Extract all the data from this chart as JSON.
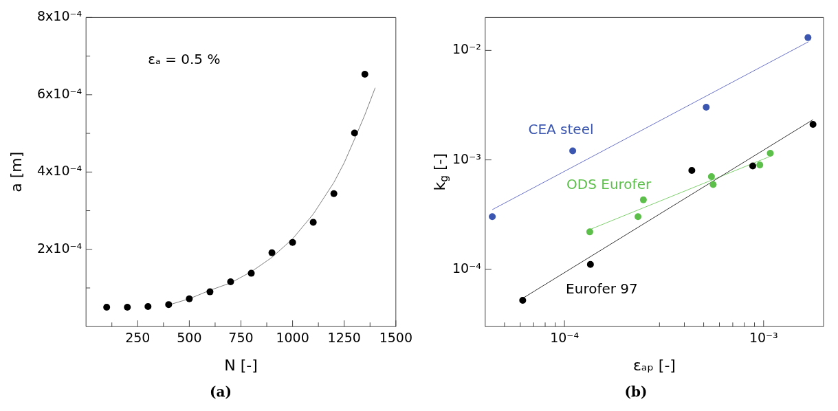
{
  "chart_data": [
    {
      "type": "scatter",
      "title": "(a)",
      "xlabel": "N [-]",
      "ylabel": "a [m]",
      "annotations": [
        "εₐ = 0.5 %"
      ],
      "grid": false,
      "legend": false,
      "xlim": [
        0,
        1500
      ],
      "xticks": [
        {
          "value": 125,
          "label": null
        },
        250,
        {
          "value": 375,
          "label": null
        },
        500,
        {
          "value": 625,
          "label": null
        },
        750,
        {
          "value": 875,
          "label": null
        },
        1000,
        {
          "value": 1125,
          "label": null
        },
        1250,
        {
          "value": 1375,
          "label": null
        },
        1500
      ],
      "ylim": [
        0,
        0.0008
      ],
      "yticks": [
        {
          "value": 0.0001,
          "label": null
        },
        {
          "value": 0.0002,
          "label": "2x10⁻⁴"
        },
        {
          "value": 0.0003,
          "label": null
        },
        {
          "value": 0.0004,
          "label": "4x10⁻⁴"
        },
        {
          "value": 0.0005,
          "label": null
        },
        {
          "value": 0.0006,
          "label": "6x10⁻⁴"
        },
        {
          "value": 0.0007,
          "label": null
        },
        {
          "value": 0.0008,
          "label": "8x10⁻⁴"
        }
      ],
      "series": [
        {
          "type": "scatter",
          "color": "#000000",
          "marker": "circle",
          "x": [
            100,
            200,
            300,
            400,
            500,
            600,
            700,
            800,
            900,
            1000,
            1100,
            1200,
            1300,
            1350
          ],
          "values": [
            5e-05,
            5e-05,
            5.2e-05,
            5.7e-05,
            7.2e-05,
            9e-05,
            0.000116,
            0.000138,
            0.000191,
            0.000218,
            0.00027,
            0.000344,
            0.000501,
            0.000653
          ]
        },
        {
          "type": "line",
          "color": "#7f7f7f",
          "marker": "none",
          "x": [
            400,
            500,
            600,
            700,
            800,
            900,
            1000,
            1100,
            1200,
            1250,
            1300,
            1350,
            1400
          ],
          "values": [
            5.6e-05,
            7.2e-05,
            9.4e-05,
            0.000113,
            0.000142,
            0.000179,
            0.000227,
            0.000291,
            0.000373,
            0.000424,
            0.000485,
            0.000548,
            0.000618
          ]
        }
      ]
    },
    {
      "type": "scatter",
      "title": "(b)",
      "xlabel": "εₐₚ [-]",
      "ylabel": "k$_{g}$ [-]",
      "grid": false,
      "legend": false,
      "log": "xy",
      "xlim": [
        4e-05,
        0.002
      ],
      "xticks": [
        {
          "value": 5e-05,
          "label": null
        },
        {
          "value": 6e-05,
          "label": null
        },
        {
          "value": 7e-05,
          "label": null
        },
        {
          "value": 8e-05,
          "label": null
        },
        {
          "value": 9e-05,
          "label": null
        },
        {
          "value": 0.0001,
          "label": "10⁻⁴"
        },
        {
          "value": 0.0003,
          "label": null
        },
        {
          "value": 0.0004,
          "label": null
        },
        {
          "value": 0.0005,
          "label": null
        },
        {
          "value": 0.0006,
          "label": null
        },
        {
          "value": 0.0007,
          "label": null
        },
        {
          "value": 0.0008,
          "label": null
        },
        {
          "value": 0.0009,
          "label": null
        },
        {
          "value": 0.001,
          "label": "10⁻³"
        }
      ],
      "ylim": [
        3e-05,
        0.02
      ],
      "yticks": [
        {
          "value": 0.0001,
          "label": "10⁻⁴"
        },
        {
          "value": 0.001,
          "label": "10⁻³"
        },
        {
          "value": 0.01,
          "label": "10⁻²"
        }
      ],
      "series": [
        {
          "type": "scatter",
          "name": "CEA steel",
          "color": "#3a56b0",
          "marker": "circle",
          "x": [
            4.34e-05,
            0.00011,
            0.000515,
            0.00167
          ],
          "values": [
            0.000303,
            0.00121,
            0.00303,
            0.0131
          ]
        },
        {
          "type": "line",
          "color": "#6a72c8",
          "marker": "none",
          "x": [
            4.34e-05,
            0.00168
          ],
          "values": [
            0.000351,
            0.012
          ]
        },
        {
          "type": "scatter",
          "name": "Eurofer 97",
          "color": "#000000",
          "marker": "circle",
          "x": [
            6.17e-05,
            0.000135,
            0.000436,
            0.000882,
            0.00177
          ],
          "values": [
            5.21e-05,
            0.000111,
            0.0008,
            0.00088,
            0.00211
          ]
        },
        {
          "type": "line",
          "color": "#333333",
          "marker": "none",
          "x": [
            6.17e-05,
            0.00177
          ],
          "values": [
            5.44e-05,
            0.00233
          ]
        },
        {
          "type": "scatter",
          "name": "ODS Eurofer",
          "color": "#5cbf4a",
          "marker": "circle",
          "x": [
            0.000134,
            0.000234,
            0.000249,
            0.000547,
            0.000558,
            0.000957,
            0.00108
          ],
          "values": [
            0.00022,
            0.000303,
            0.000432,
            0.000704,
            0.000595,
            0.0009,
            0.00115
          ]
        },
        {
          "type": "line",
          "color": "#7fd06e",
          "marker": "none",
          "x": [
            0.000134,
            0.00107
          ],
          "values": [
            0.000231,
            0.00107
          ]
        }
      ]
    }
  ]
}
